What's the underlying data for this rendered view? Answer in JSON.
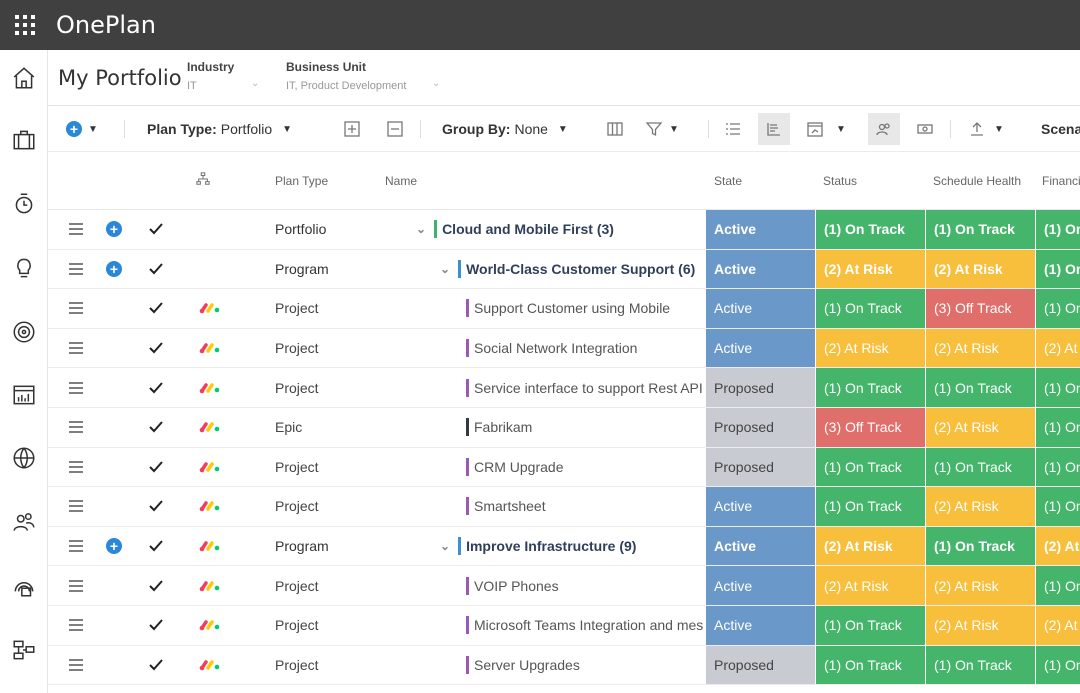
{
  "app": {
    "title": "OnePlan"
  },
  "header": {
    "title": "My Portfolio",
    "industry": {
      "label": "Industry",
      "value": "IT"
    },
    "business_unit": {
      "label": "Business Unit",
      "value": "IT, Product Development"
    }
  },
  "toolbar": {
    "plan_type_label": "Plan Type:",
    "plan_type_value": "Portfolio",
    "group_by_label": "Group By:",
    "group_by_value": "None",
    "scenario_label": "Scena"
  },
  "columns": {
    "plan_type": "Plan Type",
    "name": "Name",
    "state": "State",
    "status": "Status",
    "schedule_health": "Schedule Health",
    "financial": "Financi"
  },
  "colors": {
    "active": "#6a99c9",
    "proposed": "#c8ccd2",
    "on_track": "#45b56b",
    "at_risk": "#f7bf3c",
    "off_track": "#e06e6a",
    "bar_portfolio": "#3cb371",
    "bar_program": "#3a8fd6",
    "bar_project": "#9b59b6",
    "bar_epic": "#333a44"
  },
  "rows": [
    {
      "level": 0,
      "bold": true,
      "expand": true,
      "add": true,
      "logo": false,
      "bar": "portfolio",
      "type": "Portfolio",
      "name": "Cloud and Mobile First (3)",
      "state": "Active",
      "status": "(1) On Track",
      "schedule": "(1) On Track",
      "financial": "(1) On"
    },
    {
      "level": 1,
      "bold": true,
      "expand": true,
      "add": true,
      "logo": false,
      "bar": "program",
      "type": "Program",
      "name": "World-Class Customer Support (6)",
      "state": "Active",
      "status": "(2) At Risk",
      "schedule": "(2) At Risk",
      "financial": "(1) On"
    },
    {
      "level": 2,
      "bold": false,
      "expand": false,
      "add": false,
      "logo": true,
      "bar": "project",
      "type": "Project",
      "name": "Support Customer using Mobile",
      "state": "Active",
      "status": "(1) On Track",
      "schedule": "(3) Off Track",
      "financial": "(1) On"
    },
    {
      "level": 2,
      "bold": false,
      "expand": false,
      "add": false,
      "logo": true,
      "bar": "project",
      "type": "Project",
      "name": "Social Network Integration",
      "state": "Active",
      "status": "(2) At Risk",
      "schedule": "(2) At Risk",
      "financial": "(2) At"
    },
    {
      "level": 2,
      "bold": false,
      "expand": false,
      "add": false,
      "logo": true,
      "bar": "project",
      "type": "Project",
      "name": "Service interface to support Rest API",
      "state": "Proposed",
      "status": "(1) On Track",
      "schedule": "(1) On Track",
      "financial": "(1) On"
    },
    {
      "level": 2,
      "bold": false,
      "expand": false,
      "add": false,
      "logo": true,
      "bar": "epic",
      "type": "Epic",
      "name": "Fabrikam",
      "state": "Proposed",
      "status": "(3) Off Track",
      "schedule": "(2) At Risk",
      "financial": "(1) On"
    },
    {
      "level": 2,
      "bold": false,
      "expand": false,
      "add": false,
      "logo": true,
      "bar": "project",
      "type": "Project",
      "name": "CRM Upgrade",
      "state": "Proposed",
      "status": "(1) On Track",
      "schedule": "(1) On Track",
      "financial": "(1) On"
    },
    {
      "level": 2,
      "bold": false,
      "expand": false,
      "add": false,
      "logo": true,
      "bar": "project",
      "type": "Project",
      "name": "Smartsheet",
      "state": "Active",
      "status": "(1) On Track",
      "schedule": "(2) At Risk",
      "financial": "(1) On"
    },
    {
      "level": 1,
      "bold": true,
      "expand": true,
      "add": true,
      "logo": true,
      "bar": "program",
      "type": "Program",
      "name": "Improve Infrastructure (9)",
      "state": "Active",
      "status": "(2) At Risk",
      "schedule": "(1) On Track",
      "financial": "(2) At"
    },
    {
      "level": 2,
      "bold": false,
      "expand": false,
      "add": false,
      "logo": true,
      "bar": "project",
      "type": "Project",
      "name": "VOIP Phones",
      "state": "Active",
      "status": "(2) At Risk",
      "schedule": "(2) At Risk",
      "financial": "(1) On"
    },
    {
      "level": 2,
      "bold": false,
      "expand": false,
      "add": false,
      "logo": true,
      "bar": "project",
      "type": "Project",
      "name": "Microsoft Teams Integration and mes",
      "state": "Active",
      "status": "(1) On Track",
      "schedule": "(2) At Risk",
      "financial": "(2) At"
    },
    {
      "level": 2,
      "bold": false,
      "expand": false,
      "add": false,
      "logo": true,
      "bar": "project",
      "type": "Project",
      "name": "Server Upgrades",
      "state": "Proposed",
      "status": "(1) On Track",
      "schedule": "(1) On Track",
      "financial": "(1) On"
    }
  ],
  "icons": {
    "rail": [
      "home-icon",
      "briefcase-icon",
      "clock-history-icon",
      "lightbulb-icon",
      "target-icon",
      "chart-board-icon",
      "globe-icon",
      "people-icon",
      "dashboard-gauge-icon",
      "org-chart-icon"
    ]
  }
}
